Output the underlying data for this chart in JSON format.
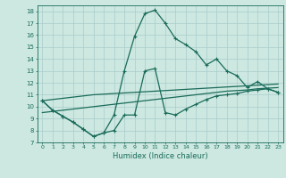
{
  "title": "",
  "xlabel": "Humidex (Indice chaleur)",
  "bg_color": "#cce8e0",
  "grid_color": "#aacccc",
  "line_color": "#1a6b5a",
  "xlim": [
    -0.5,
    23.5
  ],
  "ylim": [
    7,
    18.5
  ],
  "xticks": [
    0,
    1,
    2,
    3,
    4,
    5,
    6,
    7,
    8,
    9,
    10,
    11,
    12,
    13,
    14,
    15,
    16,
    17,
    18,
    19,
    20,
    21,
    22,
    23
  ],
  "yticks": [
    7,
    8,
    9,
    10,
    11,
    12,
    13,
    14,
    15,
    16,
    17,
    18
  ],
  "line1_x": [
    0,
    1,
    2,
    3,
    4,
    5,
    6,
    7,
    8,
    9,
    10,
    11,
    12,
    13,
    14,
    15,
    16,
    17,
    18,
    19,
    20,
    21,
    22,
    23
  ],
  "line1_y": [
    10.5,
    9.7,
    9.2,
    8.7,
    8.1,
    7.5,
    7.8,
    9.3,
    13.0,
    15.9,
    17.8,
    18.1,
    17.0,
    15.7,
    15.2,
    14.6,
    13.5,
    14.0,
    13.0,
    12.6,
    11.6,
    12.1,
    11.5,
    11.2
  ],
  "line2_x": [
    0,
    1,
    2,
    3,
    4,
    5,
    6,
    7,
    8,
    9,
    10,
    11,
    12,
    13,
    14,
    15,
    16,
    17,
    18,
    19,
    20,
    21,
    22,
    23
  ],
  "line2_y": [
    10.5,
    9.7,
    9.2,
    8.7,
    8.1,
    7.5,
    7.8,
    8.0,
    9.3,
    9.3,
    13.0,
    13.2,
    9.5,
    9.3,
    9.8,
    10.2,
    10.6,
    10.9,
    11.0,
    11.1,
    11.3,
    11.4,
    11.5,
    11.2
  ],
  "line3_x": [
    0,
    1,
    2,
    3,
    4,
    5,
    6,
    7,
    8,
    9,
    10,
    11,
    12,
    13,
    14,
    15,
    16,
    17,
    18,
    19,
    20,
    21,
    22,
    23
  ],
  "line3_y": [
    9.5,
    9.6,
    9.7,
    9.8,
    9.9,
    10.0,
    10.1,
    10.2,
    10.3,
    10.4,
    10.5,
    10.6,
    10.7,
    10.8,
    10.9,
    11.0,
    11.1,
    11.2,
    11.3,
    11.35,
    11.4,
    11.5,
    11.55,
    11.6
  ],
  "line4_x": [
    0,
    1,
    2,
    3,
    4,
    5,
    6,
    7,
    8,
    9,
    10,
    11,
    12,
    13,
    14,
    15,
    16,
    17,
    18,
    19,
    20,
    21,
    22,
    23
  ],
  "line4_y": [
    10.5,
    10.6,
    10.7,
    10.8,
    10.9,
    11.0,
    11.05,
    11.1,
    11.15,
    11.2,
    11.25,
    11.3,
    11.35,
    11.4,
    11.45,
    11.5,
    11.55,
    11.6,
    11.65,
    11.7,
    11.75,
    11.8,
    11.85,
    11.9
  ]
}
